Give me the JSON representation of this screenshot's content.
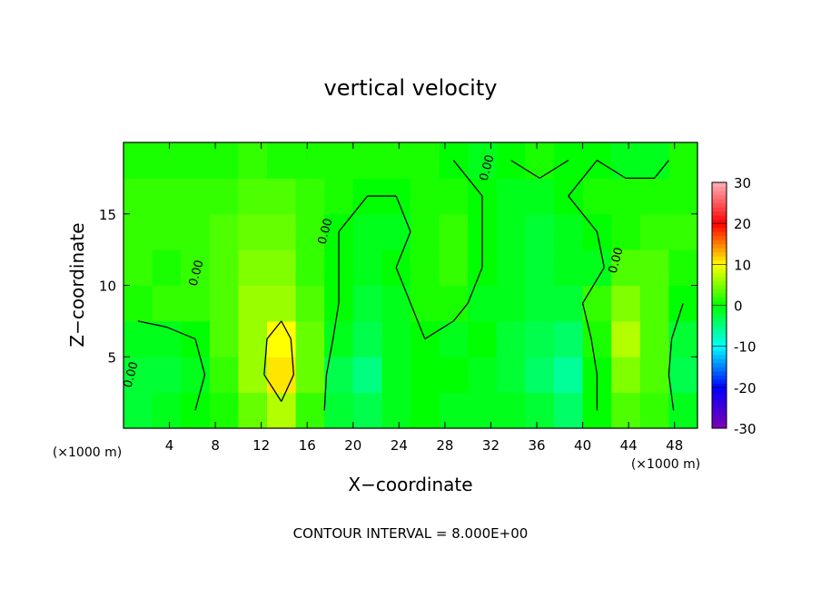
{
  "chart_data": {
    "type": "contour",
    "title": "vertical velocity",
    "xlabel": "X−coordinate",
    "ylabel": "Z−coordinate",
    "x_unit": "(×1000 m)",
    "y_unit": "(×1000 m)",
    "footer": "CONTOUR INTERVAL = 8.000E+00",
    "xlim": [
      0,
      50
    ],
    "ylim": [
      0,
      20
    ],
    "xticks": [
      4,
      8,
      12,
      16,
      20,
      24,
      28,
      32,
      36,
      40,
      44,
      48
    ],
    "yticks": [
      5,
      10,
      15
    ],
    "x": [
      1.25,
      3.75,
      6.25,
      8.75,
      11.25,
      13.75,
      16.25,
      18.75,
      21.25,
      23.75,
      26.25,
      28.75,
      31.25,
      33.75,
      36.25,
      38.75,
      41.25,
      43.75,
      46.25,
      48.75
    ],
    "y": [
      1.25,
      3.75,
      6.25,
      8.75,
      11.25,
      13.75,
      16.25,
      18.75
    ],
    "values": [
      [
        -2,
        -1,
        0,
        1,
        4,
        7,
        2,
        -2,
        -3,
        -1,
        0,
        -1,
        -1,
        -1,
        -2,
        -4,
        0,
        3,
        2,
        -1
      ],
      [
        -2,
        -2,
        -1,
        2,
        6,
        11,
        4,
        -3,
        -5,
        -1,
        0,
        0,
        -1,
        -2,
        -4,
        -6,
        0,
        5,
        3,
        -3
      ],
      [
        -1,
        -1,
        0,
        3,
        6,
        10,
        4,
        -1,
        -3,
        -1,
        0,
        -1,
        0,
        -2,
        -3,
        -4,
        1,
        7,
        3,
        -2
      ],
      [
        1,
        2,
        2,
        3,
        6,
        6,
        3,
        0,
        -2,
        -1,
        1,
        1,
        -1,
        -1,
        -2,
        -2,
        2,
        5,
        3,
        0
      ],
      [
        2,
        1,
        2,
        3,
        5,
        5,
        2,
        0,
        -1,
        0,
        1,
        2,
        0,
        -1,
        -2,
        -1,
        -1,
        3,
        3,
        1
      ],
      [
        2,
        2,
        2,
        3,
        4,
        4,
        2,
        0,
        -1,
        -1,
        1,
        2,
        0,
        -1,
        -2,
        -1,
        0,
        1,
        2,
        2
      ],
      [
        2,
        2,
        2,
        2,
        3,
        3,
        2,
        1,
        0,
        0,
        1,
        1,
        0,
        -1,
        -1,
        0,
        1,
        1,
        1,
        1
      ],
      [
        1,
        1,
        1,
        1,
        2,
        1,
        1,
        1,
        1,
        1,
        1,
        0,
        -1,
        0,
        1,
        0,
        0,
        -1,
        -1,
        1
      ]
    ],
    "clim": [
      -30,
      30
    ],
    "cticks": [
      30,
      20,
      10,
      0,
      -10,
      -20,
      -30
    ],
    "colormap": [
      "#8000b0",
      "#0000ff",
      "#00ffff",
      "#00ff00",
      "#ffff00",
      "#ff0000",
      "#ffb0b8"
    ],
    "contour_levels": [
      -8,
      {
        "value": 0,
        "label": "0.00"
      },
      8
    ]
  }
}
